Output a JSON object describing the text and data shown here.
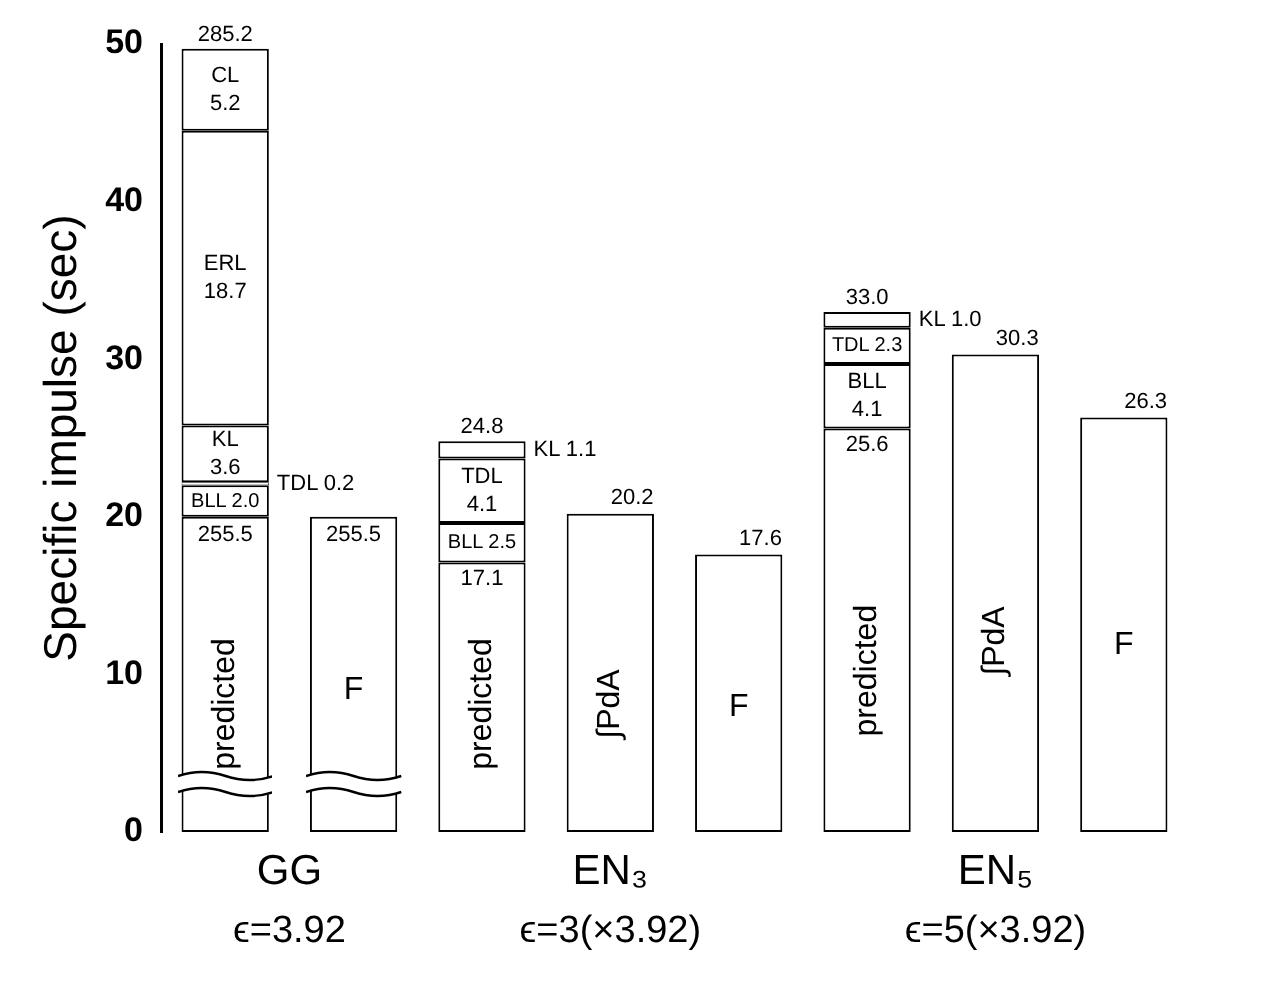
{
  "chart_data": {
    "type": "bar",
    "stacked": true,
    "ylabel": "Specific impulse (sec)",
    "categories": [
      "predicted",
      "F",
      "predicted",
      "∫PdA",
      "F",
      "predicted",
      "∫PdA",
      "F"
    ],
    "series": [
      {
        "color": "#ffffff",
        "values": [
          20,
          20,
          17.1,
          20.2,
          17.6,
          25.6,
          30.3,
          26.3
        ],
        "value_labels": [
          null,
          null,
          "17.1",
          "20.2",
          "17.6",
          "25.6",
          "30.3",
          "26.3"
        ]
      },
      {
        "name": "BLL",
        "color": "#ffffff",
        "values": [
          2.0,
          null,
          2.5,
          null,
          null,
          4.1,
          null,
          null
        ],
        "value_labels": [
          "2.0",
          null,
          "2.5",
          null,
          null,
          "4.1",
          null,
          null
        ]
      },
      {
        "name": "TDL",
        "color": "#ffffff",
        "values": [
          0.2,
          null,
          4.1,
          null,
          null,
          2.3,
          null,
          null
        ],
        "value_labels": [
          "0.2",
          null,
          "4.1",
          null,
          null,
          "2.3",
          null,
          null
        ]
      },
      {
        "name": "KL",
        "color": "#ffffff",
        "values": [
          3.6,
          null,
          1.1,
          null,
          null,
          1.0,
          null,
          null
        ],
        "value_labels": [
          "3.6",
          null,
          "1.1",
          null,
          null,
          "1.0",
          null,
          null
        ]
      },
      {
        "name": "ERL",
        "color": "#ffffff",
        "values": [
          18.7,
          null,
          null,
          null,
          null,
          null,
          null,
          null
        ],
        "value_labels": [
          "18.7",
          null,
          null,
          null,
          null,
          null,
          null,
          null
        ]
      },
      {
        "name": "CL",
        "color": "#ffffff",
        "values": [
          5.2,
          null,
          null,
          null,
          null,
          null,
          null,
          null
        ],
        "value_labels": [
          "5.2",
          null,
          null,
          null,
          null,
          null,
          null,
          null
        ]
      }
    ],
    "totals": [
      null,
      null,
      "24.8",
      null,
      null,
      "33.0",
      null,
      null
    ],
    "ylim": [
      0,
      50
    ],
    "yticks": [
      0,
      10,
      20,
      30,
      40,
      50
    ],
    "grid": false,
    "annotations": [
      "255.5",
      "255.5",
      "285.2",
      "GG",
      "EN₃",
      "EN₅",
      "ϵ=3.92",
      "ϵ=3(×3.92)",
      "ϵ=5(×3.92)"
    ]
  }
}
